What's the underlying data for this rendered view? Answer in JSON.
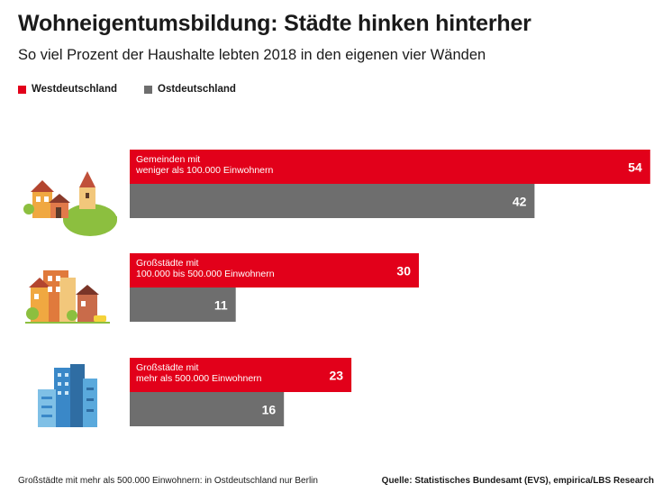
{
  "title": "Wohneigentumsbildung: Städte hinken hinterher",
  "subtitle": "So viel Prozent der Haushalte lebten 2018 in den eigenen vier Wänden",
  "legend": [
    {
      "label": "Westdeutschland",
      "color": "#e2001a"
    },
    {
      "label": "Ostdeutschland",
      "color": "#6e6e6e"
    }
  ],
  "footnote": "Großstädte mit mehr als 500.000 Einwohnern: in Ostdeutschland nur Berlin",
  "source": "Quelle: Statistisches Bundesamt (EVS), empirica/LBS Research",
  "chart_data": {
    "type": "bar",
    "orientation": "horizontal",
    "categories": [
      [
        "Gemeinden mit",
        "weniger als 100.000 Einwohnern"
      ],
      [
        "Großstädte mit",
        "100.000 bis 500.000 Einwohnern"
      ],
      [
        "Großstädte mit",
        "mehr als 500.000 Einwohnern"
      ]
    ],
    "category_icons": [
      "village-icon",
      "town-icon",
      "skyscraper-icon"
    ],
    "series": [
      {
        "name": "Westdeutschland",
        "values": [
          54,
          30,
          23
        ],
        "color": "#e2001a"
      },
      {
        "name": "Ostdeutschland",
        "values": [
          42,
          11,
          16
        ],
        "color": "#6e6e6e"
      }
    ],
    "grid": false,
    "legend_position": "top-left"
  }
}
